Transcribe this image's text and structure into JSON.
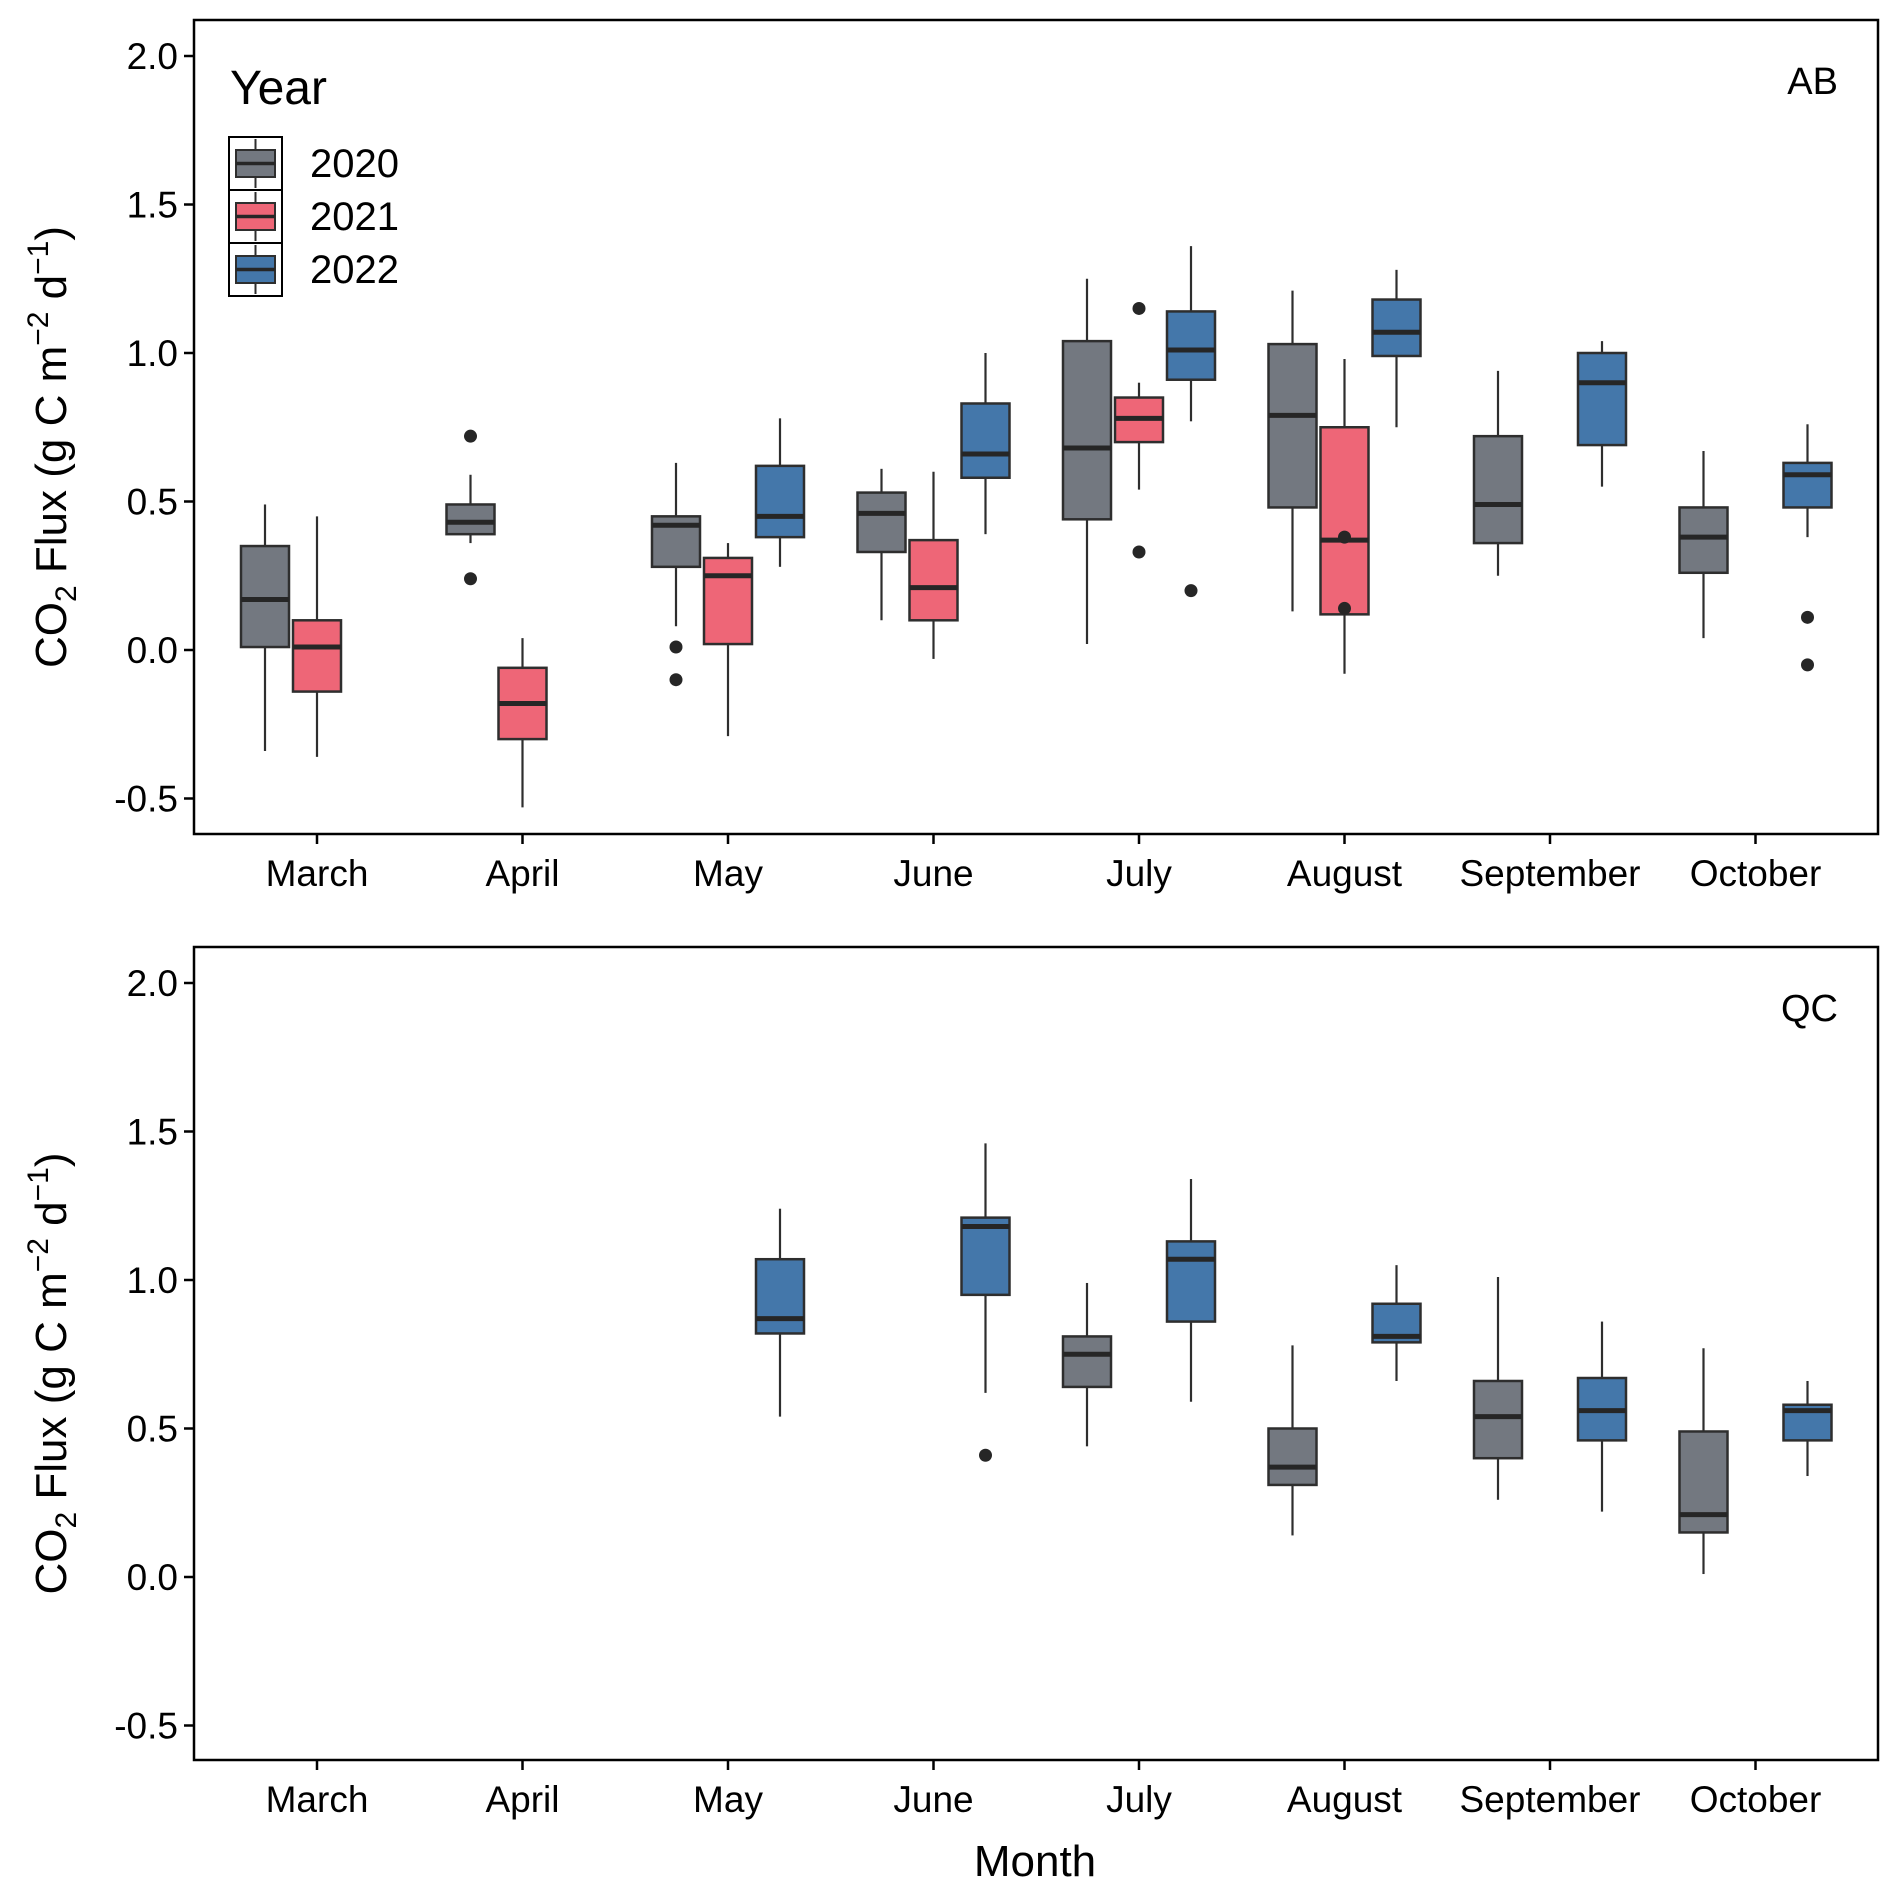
{
  "chart_data": {
    "type": "boxplot",
    "xlabel": "Month",
    "ylabel": "CO2 Flux (g C m−2 d−1)",
    "ylabel_parts": {
      "pre": "CO",
      "sub": "2",
      "mid": " Flux (g C m",
      "sup1": "−2",
      "mid2": " d",
      "sup2": "−1",
      "post": ")"
    },
    "ylim": [
      -0.6,
      2.15
    ],
    "yticks": [
      "-0.5",
      "0.0",
      "0.5",
      "1.0",
      "1.5",
      "2.0"
    ],
    "ytick_values": [
      -0.5,
      0.0,
      0.5,
      1.0,
      1.5,
      2.0
    ],
    "categories": [
      "March",
      "April",
      "May",
      "June",
      "July",
      "August",
      "September",
      "October"
    ],
    "legend": {
      "title": "Year",
      "placement": "top-left",
      "entries": [
        {
          "label": "2020",
          "color": "#737880"
        },
        {
          "label": "2021",
          "color": "#EE6677"
        },
        {
          "label": "2022",
          "color": "#4477AA"
        }
      ]
    },
    "series_order": [
      "2020",
      "2021",
      "2022"
    ],
    "panels": [
      {
        "label": "AB",
        "boxes": [
          {
            "month": "March",
            "year": "2020",
            "lower_whisker": -0.34,
            "q1": 0.01,
            "median": 0.17,
            "q3": 0.35,
            "upper_whisker": 0.49,
            "outliers": []
          },
          {
            "month": "March",
            "year": "2021",
            "lower_whisker": -0.36,
            "q1": -0.14,
            "median": 0.01,
            "q3": 0.1,
            "upper_whisker": 0.45,
            "outliers": []
          },
          {
            "month": "April",
            "year": "2020",
            "lower_whisker": 0.36,
            "q1": 0.39,
            "median": 0.43,
            "q3": 0.49,
            "upper_whisker": 0.59,
            "outliers": [
              0.72,
              0.24
            ]
          },
          {
            "month": "April",
            "year": "2021",
            "lower_whisker": -0.53,
            "q1": -0.3,
            "median": -0.18,
            "q3": -0.06,
            "upper_whisker": 0.04,
            "outliers": []
          },
          {
            "month": "May",
            "year": "2020",
            "lower_whisker": 0.08,
            "q1": 0.28,
            "median": 0.42,
            "q3": 0.45,
            "upper_whisker": 0.63,
            "outliers": [
              0.01,
              -0.1
            ]
          },
          {
            "month": "May",
            "year": "2021",
            "lower_whisker": -0.29,
            "q1": 0.02,
            "median": 0.25,
            "q3": 0.31,
            "upper_whisker": 0.36,
            "outliers": []
          },
          {
            "month": "May",
            "year": "2022",
            "lower_whisker": 0.28,
            "q1": 0.38,
            "median": 0.45,
            "q3": 0.62,
            "upper_whisker": 0.78,
            "outliers": []
          },
          {
            "month": "June",
            "year": "2020",
            "lower_whisker": 0.1,
            "q1": 0.33,
            "median": 0.46,
            "q3": 0.53,
            "upper_whisker": 0.61,
            "outliers": []
          },
          {
            "month": "June",
            "year": "2021",
            "lower_whisker": -0.03,
            "q1": 0.1,
            "median": 0.21,
            "q3": 0.37,
            "upper_whisker": 0.6,
            "outliers": []
          },
          {
            "month": "June",
            "year": "2022",
            "lower_whisker": 0.39,
            "q1": 0.58,
            "median": 0.66,
            "q3": 0.83,
            "upper_whisker": 1.0,
            "outliers": []
          },
          {
            "month": "July",
            "year": "2020",
            "lower_whisker": 0.02,
            "q1": 0.44,
            "median": 0.68,
            "q3": 1.04,
            "upper_whisker": 1.25,
            "outliers": []
          },
          {
            "month": "July",
            "year": "2021",
            "lower_whisker": 0.54,
            "q1": 0.7,
            "median": 0.78,
            "q3": 0.85,
            "upper_whisker": 0.9,
            "outliers": [
              1.15,
              0.33
            ]
          },
          {
            "month": "July",
            "year": "2022",
            "lower_whisker": 0.77,
            "q1": 0.91,
            "median": 1.01,
            "q3": 1.14,
            "upper_whisker": 1.36,
            "outliers": [
              0.2
            ]
          },
          {
            "month": "August",
            "year": "2020",
            "lower_whisker": 0.13,
            "q1": 0.48,
            "median": 0.79,
            "q3": 1.03,
            "upper_whisker": 1.21,
            "outliers": []
          },
          {
            "month": "August",
            "year": "2021",
            "lower_whisker": -0.08,
            "q1": 0.12,
            "median": 0.37,
            "q3": 0.75,
            "upper_whisker": 0.98,
            "outliers": [
              0.38,
              0.14
            ]
          },
          {
            "month": "August",
            "year": "2022",
            "lower_whisker": 0.75,
            "q1": 0.99,
            "median": 1.07,
            "q3": 1.18,
            "upper_whisker": 1.28,
            "outliers": []
          },
          {
            "month": "September",
            "year": "2020",
            "lower_whisker": 0.25,
            "q1": 0.36,
            "median": 0.49,
            "q3": 0.72,
            "upper_whisker": 0.94,
            "outliers": []
          },
          {
            "month": "September",
            "year": "2022",
            "lower_whisker": 0.55,
            "q1": 0.69,
            "median": 0.9,
            "q3": 1.0,
            "upper_whisker": 1.04,
            "outliers": []
          },
          {
            "month": "October",
            "year": "2020",
            "lower_whisker": 0.04,
            "q1": 0.26,
            "median": 0.38,
            "q3": 0.48,
            "upper_whisker": 0.67,
            "outliers": []
          },
          {
            "month": "October",
            "year": "2022",
            "lower_whisker": 0.38,
            "q1": 0.48,
            "median": 0.59,
            "q3": 0.63,
            "upper_whisker": 0.76,
            "outliers": [
              0.11,
              -0.05
            ]
          }
        ]
      },
      {
        "label": "QC",
        "boxes": [
          {
            "month": "May",
            "year": "2022",
            "lower_whisker": 0.54,
            "q1": 0.82,
            "median": 0.87,
            "q3": 1.07,
            "upper_whisker": 1.24,
            "outliers": []
          },
          {
            "month": "June",
            "year": "2022",
            "lower_whisker": 0.62,
            "q1": 0.95,
            "median": 1.18,
            "q3": 1.21,
            "upper_whisker": 1.46,
            "outliers": [
              0.41
            ]
          },
          {
            "month": "July",
            "year": "2020",
            "lower_whisker": 0.44,
            "q1": 0.64,
            "median": 0.75,
            "q3": 0.81,
            "upper_whisker": 0.99,
            "outliers": []
          },
          {
            "month": "July",
            "year": "2022",
            "lower_whisker": 0.59,
            "q1": 0.86,
            "median": 1.07,
            "q3": 1.13,
            "upper_whisker": 1.34,
            "outliers": []
          },
          {
            "month": "August",
            "year": "2020",
            "lower_whisker": 0.14,
            "q1": 0.31,
            "median": 0.37,
            "q3": 0.5,
            "upper_whisker": 0.78,
            "outliers": []
          },
          {
            "month": "August",
            "year": "2022",
            "lower_whisker": 0.66,
            "q1": 0.79,
            "median": 0.81,
            "q3": 0.92,
            "upper_whisker": 1.05,
            "outliers": []
          },
          {
            "month": "September",
            "year": "2020",
            "lower_whisker": 0.26,
            "q1": 0.4,
            "median": 0.54,
            "q3": 0.66,
            "upper_whisker": 1.01,
            "outliers": []
          },
          {
            "month": "September",
            "year": "2022",
            "lower_whisker": 0.22,
            "q1": 0.46,
            "median": 0.56,
            "q3": 0.67,
            "upper_whisker": 0.86,
            "outliers": []
          },
          {
            "month": "October",
            "year": "2020",
            "lower_whisker": 0.01,
            "q1": 0.15,
            "median": 0.21,
            "q3": 0.49,
            "upper_whisker": 0.77,
            "outliers": []
          },
          {
            "month": "October",
            "year": "2022",
            "lower_whisker": 0.34,
            "q1": 0.46,
            "median": 0.56,
            "q3": 0.58,
            "upper_whisker": 0.66,
            "outliers": []
          }
        ]
      }
    ]
  }
}
